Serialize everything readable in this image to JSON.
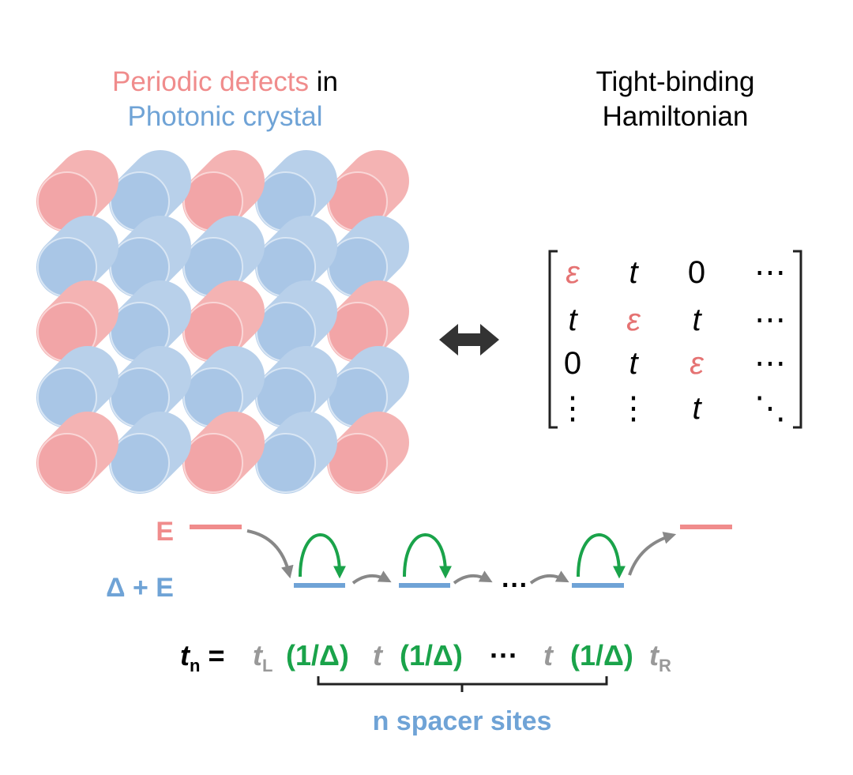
{
  "left_title": {
    "line1_colored": "Periodic defects",
    "line1_rest": " in",
    "line2": "Photonic crystal"
  },
  "right_title": {
    "line1": "Tight-binding",
    "line2": "Hamiltonian"
  },
  "colors": {
    "defect": "#f08c8c",
    "crystal": "#6fa3d6",
    "hop_green": "#1aa34a",
    "arrow_gray": "#888888"
  },
  "crystal_grid": [
    [
      "defect",
      "crystal",
      "defect",
      "crystal",
      "defect"
    ],
    [
      "crystal",
      "crystal",
      "crystal",
      "crystal",
      "crystal"
    ],
    [
      "defect",
      "crystal",
      "defect",
      "crystal",
      "defect"
    ],
    [
      "crystal",
      "crystal",
      "crystal",
      "crystal",
      "crystal"
    ],
    [
      "defect",
      "crystal",
      "defect",
      "crystal",
      "defect"
    ]
  ],
  "equivalence_icon": "double-headed-arrow-icon",
  "matrix": [
    [
      "ε",
      "t",
      "0",
      "⋯"
    ],
    [
      "t",
      "ε",
      "t",
      "⋯"
    ],
    [
      "0",
      "t",
      "ε",
      "⋯"
    ],
    [
      "⋮",
      "⋮",
      "t",
      "⋱"
    ]
  ],
  "levels": {
    "E_label": "E",
    "delta_label": "Δ + E",
    "dots": "···"
  },
  "equation": {
    "lhs": "t",
    "lhs_sub": "n",
    "eq": "=",
    "tL": "t",
    "tL_sub": "L",
    "inv": "(1/Δ)",
    "t": "t",
    "dots": "···",
    "tR": "t",
    "tR_sub": "R"
  },
  "brace_label": "n spacer sites"
}
